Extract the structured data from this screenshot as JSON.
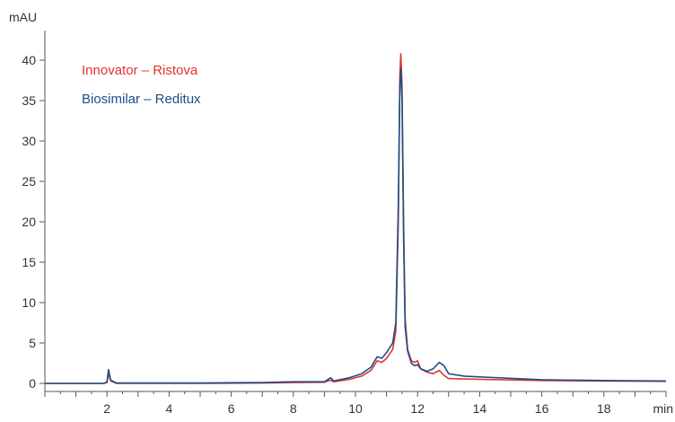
{
  "chart_data": {
    "type": "line",
    "title": "",
    "xlabel": "min",
    "ylabel": "mAU",
    "xlim": [
      0,
      20
    ],
    "ylim": [
      -1,
      43
    ],
    "x_ticks": [
      2,
      4,
      6,
      8,
      10,
      12,
      14,
      16,
      18
    ],
    "y_ticks": [
      0,
      5,
      10,
      15,
      20,
      25,
      30,
      35,
      40
    ],
    "grid": false,
    "legend_position": "top-left",
    "series": [
      {
        "name": "Innovator – Ristova",
        "color": "#e0342e",
        "points": [
          [
            0,
            0
          ],
          [
            1.9,
            0
          ],
          [
            2.0,
            0.1
          ],
          [
            2.05,
            1.2
          ],
          [
            2.12,
            0.3
          ],
          [
            2.3,
            0
          ],
          [
            5,
            0
          ],
          [
            7,
            0.05
          ],
          [
            8.0,
            0.1
          ],
          [
            9.0,
            0.15
          ],
          [
            9.2,
            0.4
          ],
          [
            9.3,
            0.2
          ],
          [
            9.8,
            0.5
          ],
          [
            10.2,
            0.9
          ],
          [
            10.5,
            1.6
          ],
          [
            10.7,
            2.8
          ],
          [
            10.85,
            2.6
          ],
          [
            11.0,
            3.1
          ],
          [
            11.2,
            4.2
          ],
          [
            11.3,
            6.5
          ],
          [
            11.38,
            20
          ],
          [
            11.43,
            38
          ],
          [
            11.46,
            40.8
          ],
          [
            11.5,
            37
          ],
          [
            11.55,
            20
          ],
          [
            11.6,
            8
          ],
          [
            11.68,
            4.2
          ],
          [
            11.8,
            2.8
          ],
          [
            11.9,
            2.6
          ],
          [
            12.0,
            2.8
          ],
          [
            12.1,
            1.8
          ],
          [
            12.3,
            1.4
          ],
          [
            12.5,
            1.2
          ],
          [
            12.7,
            1.6
          ],
          [
            12.85,
            1.0
          ],
          [
            13.0,
            0.6
          ],
          [
            14,
            0.5
          ],
          [
            16,
            0.35
          ],
          [
            18,
            0.3
          ],
          [
            20,
            0.25
          ]
        ]
      },
      {
        "name": "Biosimilar – Reditux",
        "color": "#1d4e89",
        "points": [
          [
            0,
            0
          ],
          [
            1.9,
            0
          ],
          [
            2.0,
            0.2
          ],
          [
            2.05,
            1.7
          ],
          [
            2.12,
            0.4
          ],
          [
            2.3,
            0.05
          ],
          [
            5,
            0.05
          ],
          [
            7,
            0.1
          ],
          [
            8.0,
            0.2
          ],
          [
            9.0,
            0.2
          ],
          [
            9.2,
            0.7
          ],
          [
            9.3,
            0.3
          ],
          [
            9.8,
            0.7
          ],
          [
            10.2,
            1.2
          ],
          [
            10.5,
            2.0
          ],
          [
            10.7,
            3.3
          ],
          [
            10.85,
            3.1
          ],
          [
            11.0,
            3.8
          ],
          [
            11.2,
            5.0
          ],
          [
            11.3,
            7.5
          ],
          [
            11.38,
            22
          ],
          [
            11.43,
            37
          ],
          [
            11.46,
            39
          ],
          [
            11.5,
            35
          ],
          [
            11.55,
            18
          ],
          [
            11.6,
            7
          ],
          [
            11.68,
            4.0
          ],
          [
            11.8,
            2.5
          ],
          [
            11.9,
            2.2
          ],
          [
            12.0,
            2.3
          ],
          [
            12.1,
            1.8
          ],
          [
            12.3,
            1.5
          ],
          [
            12.5,
            1.8
          ],
          [
            12.7,
            2.6
          ],
          [
            12.85,
            2.2
          ],
          [
            13.0,
            1.2
          ],
          [
            13.5,
            0.9
          ],
          [
            14,
            0.8
          ],
          [
            16,
            0.45
          ],
          [
            18,
            0.35
          ],
          [
            20,
            0.3
          ]
        ]
      }
    ]
  }
}
